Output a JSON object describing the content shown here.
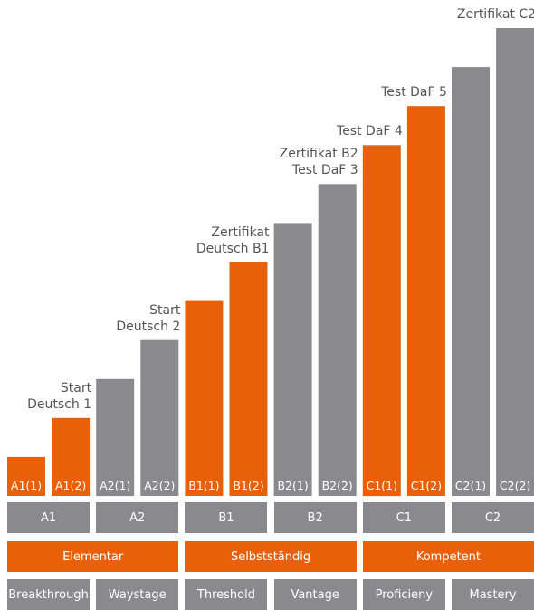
{
  "chart_data": {
    "type": "bar",
    "categories": [
      "A1(1)",
      "A1(2)",
      "A2(1)",
      "A2(2)",
      "B1(1)",
      "B1(2)",
      "B2(1)",
      "B2(2)",
      "C1(1)",
      "C1(2)",
      "C2(1)",
      "C2(2)"
    ],
    "values": [
      1,
      2,
      3,
      4,
      5,
      6,
      7,
      8,
      9,
      10,
      11,
      12
    ],
    "ylim": [
      0,
      12
    ],
    "colors": {
      "highlight": "#e8600a",
      "neutral": "#8a898d"
    },
    "bar_colors": [
      "highlight",
      "highlight",
      "neutral",
      "neutral",
      "highlight",
      "highlight",
      "neutral",
      "neutral",
      "highlight",
      "highlight",
      "neutral",
      "neutral"
    ],
    "annotations": [
      {
        "bar": 1,
        "lines": [
          "Start",
          "Deutsch 1"
        ]
      },
      {
        "bar": 3,
        "lines": [
          "Start",
          "Deutsch 2"
        ]
      },
      {
        "bar": 5,
        "lines": [
          "Zertifikat",
          "Deutsch B1"
        ]
      },
      {
        "bar": 7,
        "lines": [
          "Zertifikat B2",
          "Test DaF 3"
        ]
      },
      {
        "bar": 8,
        "lines": [
          "Test DaF 4"
        ]
      },
      {
        "bar": 9,
        "lines": [
          "Test DaF 5"
        ]
      },
      {
        "bar": 11,
        "lines": [
          "Zertifikat C2"
        ]
      }
    ],
    "levels": [
      "A1",
      "A2",
      "B1",
      "B2",
      "C1",
      "C2"
    ],
    "groups": [
      "Elementar",
      "Selbstständig",
      "Kompetent"
    ],
    "descriptors": [
      "Breakthrough",
      "Waystage",
      "Threshold",
      "Vantage",
      "Proficieny",
      "Mastery"
    ]
  }
}
